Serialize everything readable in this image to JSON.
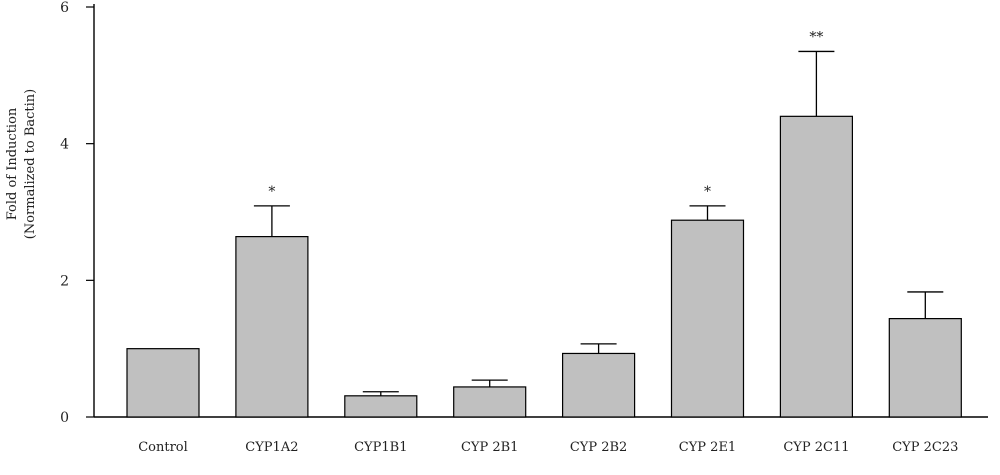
{
  "chart_data": {
    "type": "bar",
    "title": "",
    "xlabel": "",
    "ylabel": [
      "Fold of Induction",
      "(Normalized to Bactin)"
    ],
    "ylim": [
      0,
      6
    ],
    "yticks": [
      0,
      2,
      4,
      6
    ],
    "categories": [
      "Control",
      "CYP1A2",
      "CYP1B1",
      "CYP2B1",
      "CYP2B2",
      "CYP2E1",
      "CYP2C11",
      "CYP2C23"
    ],
    "category_labels": [
      "Control",
      "CYP1A2",
      "CYP1B1",
      "CYP 2B1",
      "CYP 2B2",
      "CYP 2E1",
      "CYP 2C11",
      "CYP 2C23"
    ],
    "values": [
      1.0,
      2.64,
      0.31,
      0.44,
      0.93,
      2.88,
      4.4,
      1.44
    ],
    "errors": [
      0.0,
      0.45,
      0.06,
      0.1,
      0.14,
      0.21,
      0.95,
      0.39
    ],
    "annotations": [
      "",
      "*",
      "",
      "",
      "",
      "*",
      "**",
      ""
    ],
    "bar_color": "#c0c0c0",
    "grid": false,
    "legend": "none"
  }
}
